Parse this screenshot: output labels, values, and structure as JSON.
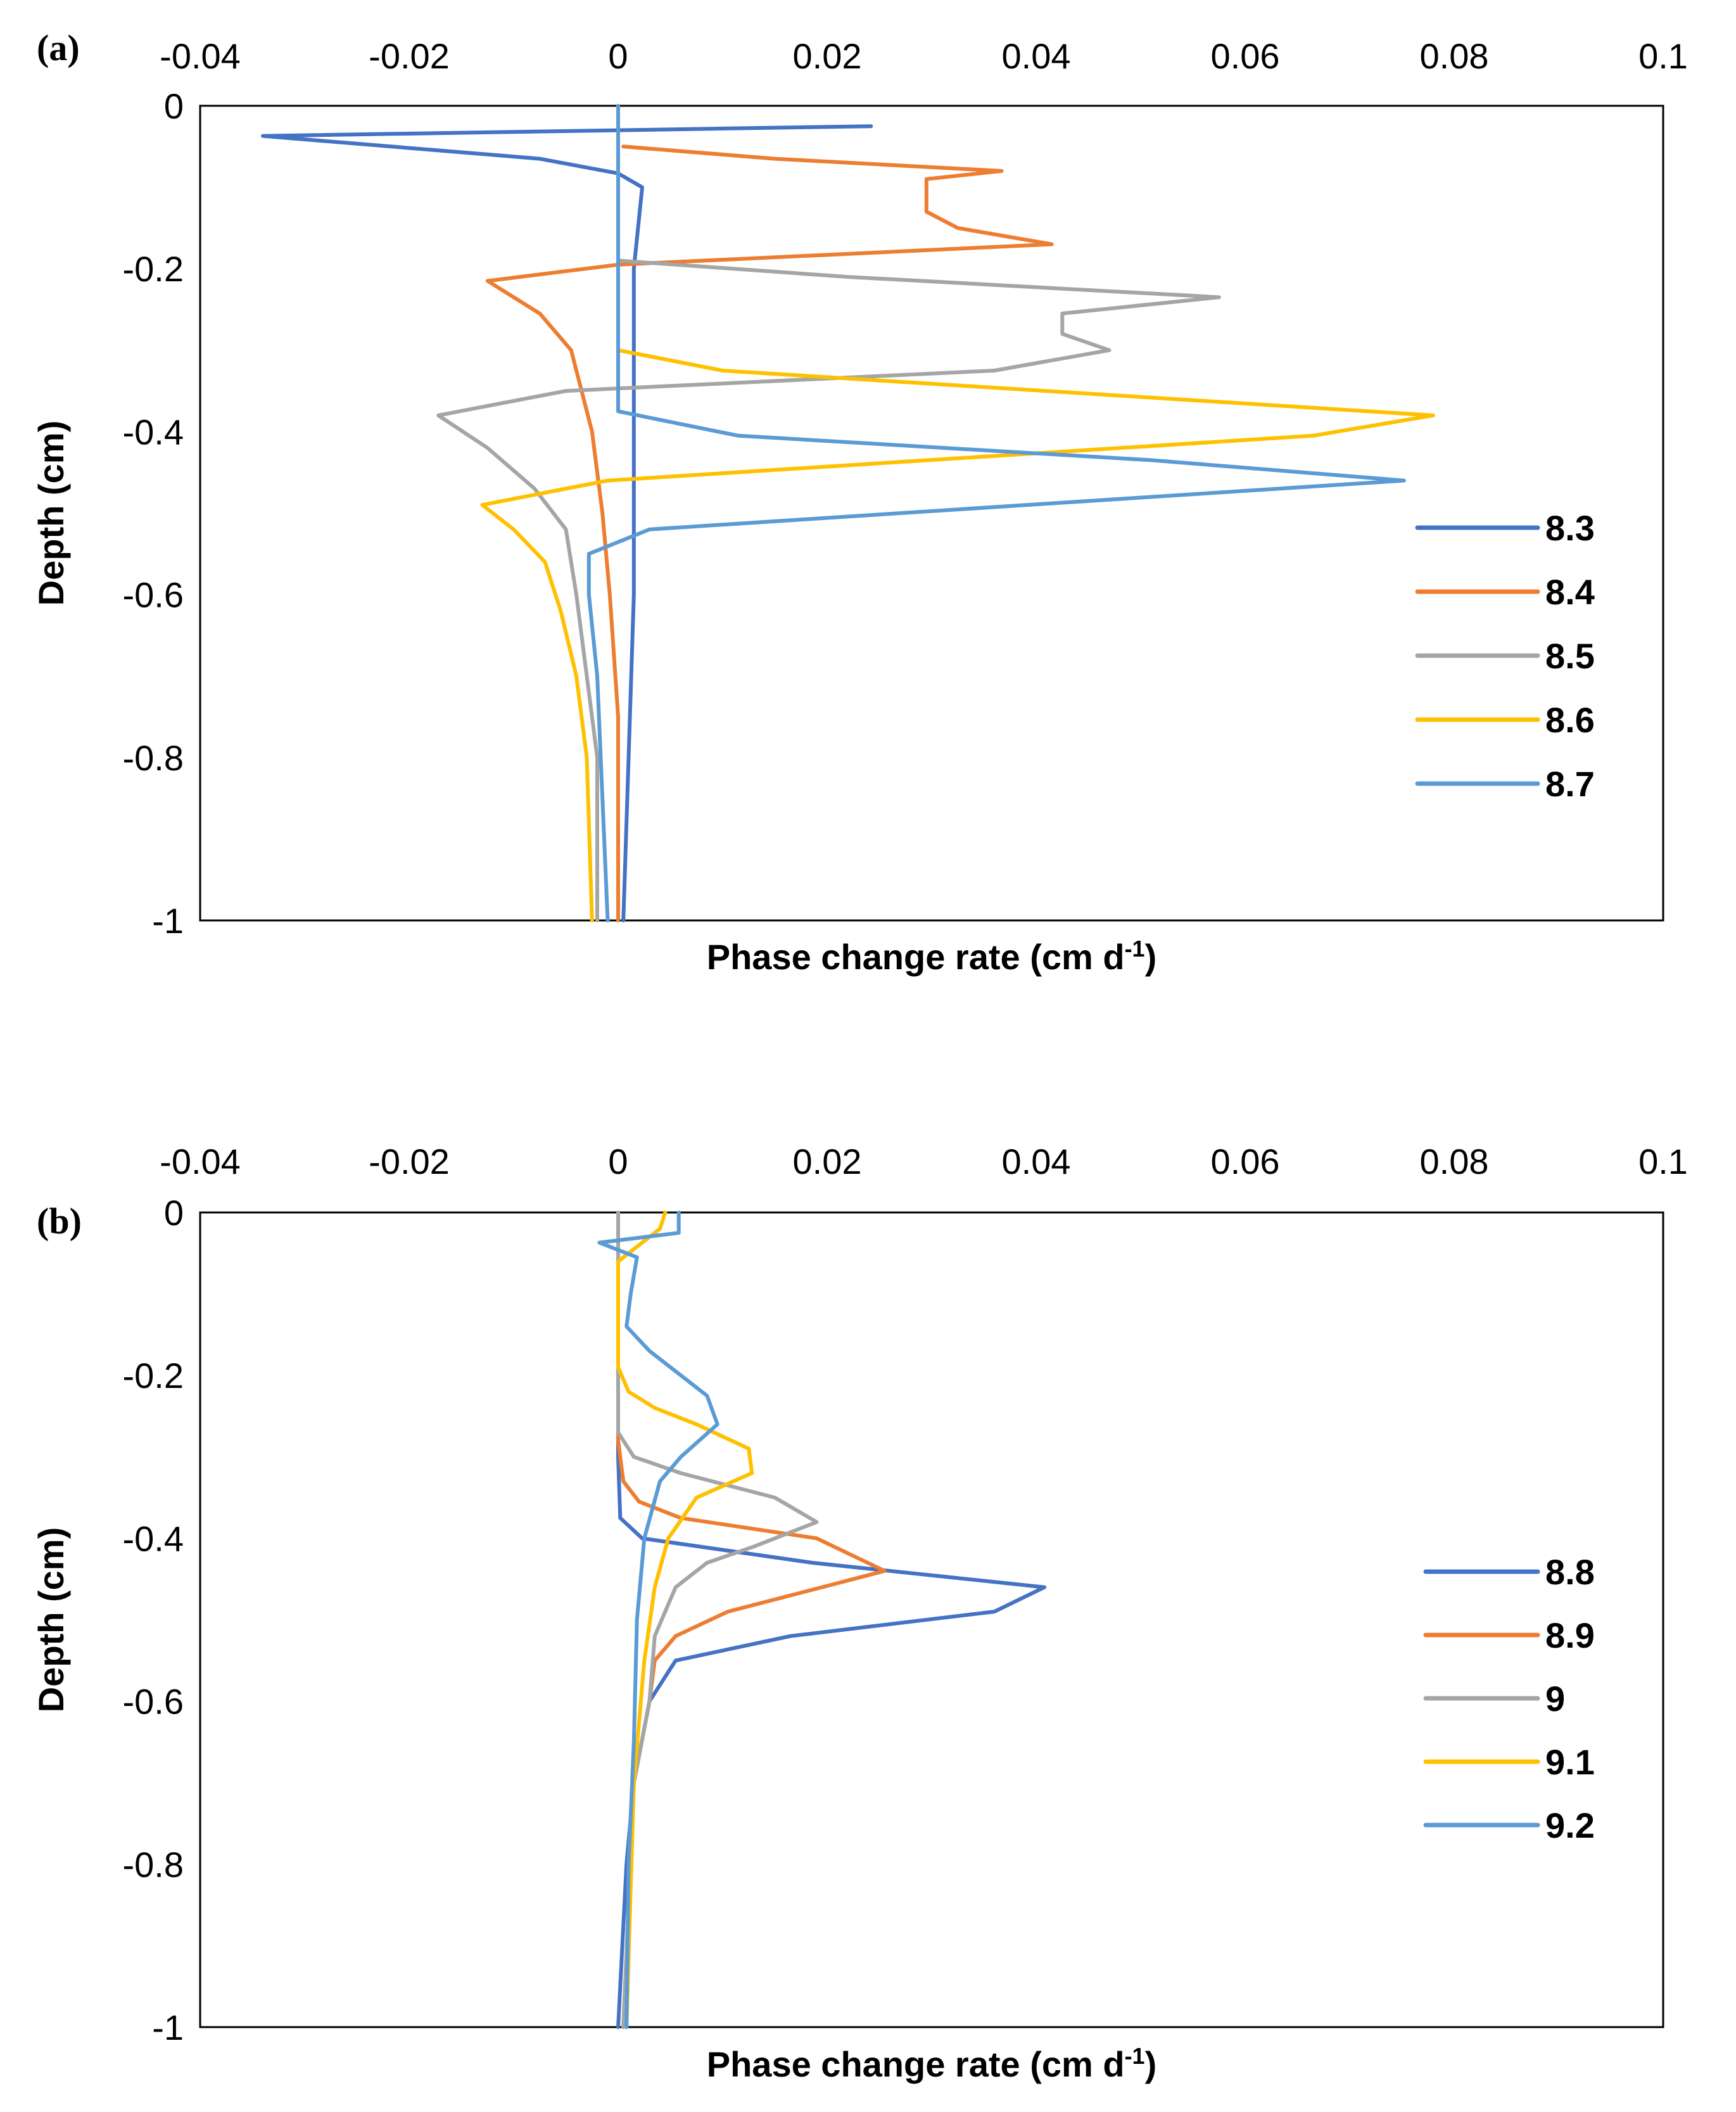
{
  "chart_data": [
    {
      "type": "line",
      "panel_label": "(a)",
      "title": "",
      "xlabel": "Phase change rate (cm d",
      "xlabel_sup": "-1",
      "xlabel_close": ")",
      "ylabel": "Depth (cm)",
      "xlim": [
        -0.04,
        0.1
      ],
      "ylim": [
        -1,
        0
      ],
      "x_ticks": [
        -0.04,
        -0.02,
        0,
        0.02,
        0.04,
        0.06,
        0.08,
        0.1
      ],
      "x_tick_labels": [
        "-0.04",
        "-0.02",
        "0",
        "0.02",
        "0.04",
        "0.06",
        "0.08",
        "0.1"
      ],
      "y_ticks": [
        0,
        -0.2,
        -0.4,
        -0.6,
        -0.8,
        -1
      ],
      "y_tick_labels": [
        "0",
        "-0.2",
        "-0.4",
        "-0.6",
        "-0.8",
        "-1"
      ],
      "x_axis_position": "top",
      "grid": false,
      "legend_position": "right",
      "series": [
        {
          "name": "8.3",
          "color": "#4472C4",
          "points": [
            [
              0.0242,
              -0.025
            ],
            [
              -0.034,
              -0.037
            ],
            [
              -0.0075,
              -0.065
            ],
            [
              0.0,
              -0.083
            ],
            [
              0.0023,
              -0.1
            ],
            [
              0.0015,
              -0.2
            ],
            [
              0.0015,
              -0.4
            ],
            [
              0.0015,
              -0.6
            ],
            [
              0.001,
              -0.8
            ],
            [
              0.0005,
              -1.0
            ]
          ]
        },
        {
          "name": "8.4",
          "color": "#ED7D31",
          "points": [
            [
              0.0005,
              -0.05
            ],
            [
              0.015,
              -0.065
            ],
            [
              0.0367,
              -0.08
            ],
            [
              0.0295,
              -0.09
            ],
            [
              0.0295,
              -0.13
            ],
            [
              0.0325,
              -0.15
            ],
            [
              0.0415,
              -0.17
            ],
            [
              0.0,
              -0.195
            ],
            [
              -0.0125,
              -0.215
            ],
            [
              -0.0075,
              -0.255
            ],
            [
              -0.0045,
              -0.3
            ],
            [
              -0.0025,
              -0.4
            ],
            [
              -0.0015,
              -0.5
            ],
            [
              -0.0008,
              -0.6
            ],
            [
              0.0,
              -0.75
            ],
            [
              0.0,
              -1.0
            ]
          ]
        },
        {
          "name": "8.5",
          "color": "#A5A5A5",
          "points": [
            [
              0.0,
              -0.19
            ],
            [
              0.022,
              -0.21
            ],
            [
              0.0575,
              -0.235
            ],
            [
              0.0425,
              -0.255
            ],
            [
              0.0425,
              -0.28
            ],
            [
              0.047,
              -0.3
            ],
            [
              0.036,
              -0.325
            ],
            [
              -0.005,
              -0.35
            ],
            [
              -0.0172,
              -0.38
            ],
            [
              -0.0125,
              -0.42
            ],
            [
              -0.008,
              -0.47
            ],
            [
              -0.005,
              -0.52
            ],
            [
              -0.004,
              -0.6
            ],
            [
              -0.003,
              -0.7
            ],
            [
              -0.002,
              -0.8
            ],
            [
              -0.002,
              -1.0
            ]
          ]
        },
        {
          "name": "8.6",
          "color": "#FFC000",
          "points": [
            [
              0.0,
              -0.3
            ],
            [
              0.01,
              -0.325
            ],
            [
              0.078,
              -0.38
            ],
            [
              0.0665,
              -0.405
            ],
            [
              -0.001,
              -0.46
            ],
            [
              -0.013,
              -0.49
            ],
            [
              -0.01,
              -0.52
            ],
            [
              -0.007,
              -0.56
            ],
            [
              -0.0055,
              -0.62
            ],
            [
              -0.004,
              -0.7
            ],
            [
              -0.003,
              -0.8
            ],
            [
              -0.0025,
              -1.0
            ]
          ]
        },
        {
          "name": "8.7",
          "color": "#5B9BD5",
          "points": [
            [
              0.0,
              0.0
            ],
            [
              0.0,
              -0.375
            ],
            [
              0.0115,
              -0.405
            ],
            [
              0.051,
              -0.435
            ],
            [
              0.0752,
              -0.46
            ],
            [
              0.003,
              -0.52
            ],
            [
              -0.0028,
              -0.55
            ],
            [
              -0.0028,
              -0.6
            ],
            [
              -0.002,
              -0.7
            ],
            [
              -0.0015,
              -0.85
            ],
            [
              -0.001,
              -1.0
            ]
          ]
        }
      ]
    },
    {
      "type": "line",
      "panel_label": "(b)",
      "title": "",
      "xlabel": "Phase change rate (cm d",
      "xlabel_sup": "-1",
      "xlabel_close": ")",
      "ylabel": "Depth (cm)",
      "xlim": [
        -0.04,
        0.1
      ],
      "ylim": [
        -1,
        0
      ],
      "x_ticks": [
        -0.04,
        -0.02,
        0,
        0.02,
        0.04,
        0.06,
        0.08,
        0.1
      ],
      "x_tick_labels": [
        "-0.04",
        "-0.02",
        "0",
        "0.02",
        "0.04",
        "0.06",
        "0.08",
        "0.1"
      ],
      "y_ticks": [
        0,
        -0.2,
        -0.4,
        -0.6,
        -0.8,
        -1
      ],
      "y_tick_labels": [
        "0",
        "-0.2",
        "-0.4",
        "-0.6",
        "-0.8",
        "-1"
      ],
      "x_axis_position": "top",
      "grid": false,
      "legend_position": "right",
      "series": [
        {
          "name": "8.8",
          "color": "#4472C4",
          "points": [
            [
              0.0,
              0.0
            ],
            [
              0.0,
              -0.3
            ],
            [
              0.0002,
              -0.375
            ],
            [
              0.0023,
              -0.4
            ],
            [
              0.0186,
              -0.43
            ],
            [
              0.0408,
              -0.46
            ],
            [
              0.036,
              -0.49
            ],
            [
              0.0165,
              -0.52
            ],
            [
              0.0055,
              -0.55
            ],
            [
              0.003,
              -0.6
            ],
            [
              0.0015,
              -0.7
            ],
            [
              0.0008,
              -0.8
            ],
            [
              0.0,
              -1.0
            ]
          ]
        },
        {
          "name": "8.9",
          "color": "#ED7D31",
          "points": [
            [
              0.0,
              0.0
            ],
            [
              0.0,
              -0.28
            ],
            [
              0.0005,
              -0.33
            ],
            [
              0.002,
              -0.355
            ],
            [
              0.006,
              -0.375
            ],
            [
              0.019,
              -0.4
            ],
            [
              0.0255,
              -0.44
            ],
            [
              0.0195,
              -0.46
            ],
            [
              0.0105,
              -0.49
            ],
            [
              0.0055,
              -0.52
            ],
            [
              0.0035,
              -0.55
            ],
            [
              0.003,
              -0.6
            ],
            [
              0.0015,
              -0.7
            ],
            [
              0.0005,
              -1.0
            ]
          ]
        },
        {
          "name": "9",
          "color": "#A5A5A5",
          "points": [
            [
              0.0,
              0.0
            ],
            [
              0.0,
              -0.27
            ],
            [
              0.0015,
              -0.3
            ],
            [
              0.006,
              -0.32
            ],
            [
              0.015,
              -0.35
            ],
            [
              0.019,
              -0.38
            ],
            [
              0.013,
              -0.41
            ],
            [
              0.0085,
              -0.43
            ],
            [
              0.0055,
              -0.46
            ],
            [
              0.0035,
              -0.52
            ],
            [
              0.003,
              -0.6
            ],
            [
              0.0015,
              -0.7
            ],
            [
              0.0005,
              -1.0
            ]
          ]
        },
        {
          "name": "9.1",
          "color": "#FFC000",
          "points": [
            [
              0.0045,
              0.0
            ],
            [
              0.004,
              -0.02
            ],
            [
              0.0,
              -0.06
            ],
            [
              0.0,
              -0.19
            ],
            [
              0.001,
              -0.22
            ],
            [
              0.0035,
              -0.24
            ],
            [
              0.0075,
              -0.26
            ],
            [
              0.0125,
              -0.29
            ],
            [
              0.0128,
              -0.32
            ],
            [
              0.0075,
              -0.35
            ],
            [
              0.0048,
              -0.4
            ],
            [
              0.0035,
              -0.46
            ],
            [
              0.0025,
              -0.55
            ],
            [
              0.0015,
              -0.7
            ],
            [
              0.0008,
              -1.0
            ]
          ]
        },
        {
          "name": "9.2",
          "color": "#5B9BD5",
          "points": [
            [
              0.0058,
              0.0
            ],
            [
              0.0058,
              -0.025
            ],
            [
              -0.0018,
              -0.037
            ],
            [
              0.0018,
              -0.055
            ],
            [
              0.0012,
              -0.1
            ],
            [
              0.0008,
              -0.14
            ],
            [
              0.003,
              -0.17
            ],
            [
              0.0085,
              -0.225
            ],
            [
              0.0095,
              -0.26
            ],
            [
              0.006,
              -0.3
            ],
            [
              0.004,
              -0.33
            ],
            [
              0.0025,
              -0.4
            ],
            [
              0.0018,
              -0.5
            ],
            [
              0.0015,
              -0.65
            ],
            [
              0.001,
              -0.8
            ],
            [
              0.0008,
              -1.0
            ]
          ]
        }
      ]
    }
  ]
}
